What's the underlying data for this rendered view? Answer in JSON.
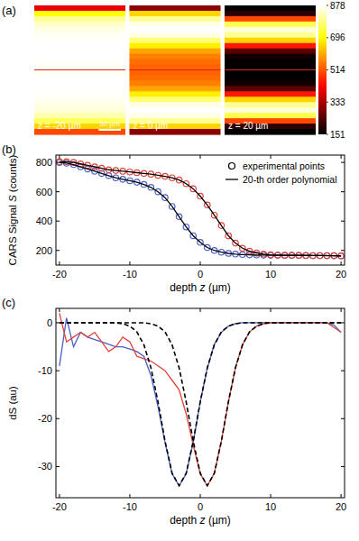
{
  "chart_data": [
    {
      "type": "heatmap",
      "title": "(a)",
      "xlim": [
        0,
        205
      ],
      "images": [
        {
          "label": "z = -20 µm",
          "rows": [
            400,
            700,
            800,
            840,
            860,
            870,
            875,
            878,
            878,
            878,
            875,
            870,
            870,
            875,
            878,
            878,
            875,
            870,
            860,
            850,
            820,
            760,
            650,
            500
          ]
        },
        {
          "label": "z = 0 µm",
          "rows": [
            300,
            650,
            800,
            860,
            878,
            860,
            780,
            680,
            600,
            560,
            540,
            530,
            530,
            540,
            560,
            600,
            680,
            780,
            860,
            878,
            860,
            800,
            650,
            300
          ]
        },
        {
          "label": "z = 20 µm",
          "rows": [
            151,
            200,
            500,
            750,
            850,
            800,
            650,
            450,
            250,
            170,
            155,
            151,
            151,
            155,
            170,
            250,
            450,
            650,
            800,
            850,
            750,
            500,
            200,
            151
          ]
        }
      ],
      "scale_bar": {
        "value": 50,
        "label": "50 µm"
      },
      "colorbar": {
        "range": [
          151,
          878
        ],
        "ticks": [
          151,
          333,
          514,
          696,
          878
        ]
      }
    },
    {
      "type": "scatter",
      "title": "(b)",
      "xlabel": "depth z (µm)",
      "ylabel": "CARS Signal S (counts)",
      "x": [
        -20,
        -19,
        -18,
        -17,
        -16,
        -15,
        -14,
        -13,
        -12,
        -11,
        -10,
        -9,
        -8,
        -7,
        -6,
        -5,
        -4,
        -3,
        -2,
        -1,
        0,
        1,
        2,
        3,
        4,
        5,
        6,
        7,
        8,
        9,
        10,
        11,
        12,
        13,
        14,
        15,
        16,
        17,
        18,
        19,
        20
      ],
      "xlim": [
        -20.5,
        20.5
      ],
      "xticks": [
        -20,
        -10,
        0,
        10,
        20
      ],
      "ylim": [
        100,
        850
      ],
      "yticks": [
        200,
        400,
        600,
        800
      ],
      "grid": false,
      "legend": "top-right",
      "series": [
        {
          "name": "experimental points",
          "type": "scatter",
          "marker": "circle",
          "color": "#4a5fc8",
          "values": [
            800,
            795,
            785,
            770,
            755,
            740,
            725,
            710,
            695,
            685,
            675,
            665,
            650,
            630,
            600,
            560,
            500,
            430,
            360,
            300,
            255,
            220,
            200,
            188,
            180,
            175,
            172,
            170,
            169,
            168,
            167,
            167,
            166,
            166,
            166,
            165,
            165,
            165,
            164,
            164,
            163
          ]
        },
        {
          "name": "experimental points",
          "type": "scatter",
          "marker": "circle",
          "color": "#e0433a",
          "values": [
            805,
            805,
            800,
            790,
            780,
            770,
            760,
            750,
            745,
            740,
            735,
            730,
            725,
            720,
            712,
            705,
            695,
            680,
            655,
            620,
            570,
            510,
            440,
            370,
            300,
            250,
            215,
            195,
            182,
            175,
            170,
            168,
            167,
            167,
            166,
            166,
            165,
            165,
            165,
            164,
            163
          ]
        },
        {
          "name": "20-th order polynomial",
          "type": "line",
          "line_style": "solid",
          "color": "#000000",
          "values": [
            800,
            795,
            785,
            770,
            755,
            740,
            725,
            710,
            695,
            685,
            675,
            665,
            650,
            630,
            600,
            560,
            500,
            430,
            360,
            300,
            255,
            220,
            200,
            188,
            180,
            175,
            172,
            170,
            169,
            168,
            167,
            167,
            166,
            166,
            166,
            165,
            165,
            165,
            164,
            164,
            163
          ]
        },
        {
          "name": "20-th order polynomial",
          "type": "line",
          "line_style": "solid",
          "color": "#000000",
          "values": [
            805,
            805,
            800,
            790,
            780,
            770,
            760,
            750,
            745,
            740,
            735,
            730,
            725,
            720,
            712,
            705,
            695,
            680,
            655,
            620,
            570,
            510,
            440,
            370,
            300,
            250,
            215,
            195,
            182,
            175,
            170,
            168,
            167,
            167,
            166,
            166,
            165,
            165,
            165,
            164,
            163
          ]
        }
      ]
    },
    {
      "type": "line",
      "title": "(c)",
      "xlabel": "depth z (µm)",
      "ylabel": "dS (au)",
      "x": [
        -20,
        -19,
        -18,
        -17,
        -16,
        -15,
        -14,
        -13,
        -12,
        -11,
        -10,
        -9,
        -8,
        -7,
        -6,
        -5,
        -4,
        -3,
        -2,
        -1,
        0,
        1,
        2,
        3,
        4,
        5,
        6,
        7,
        8,
        9,
        10,
        11,
        12,
        13,
        14,
        15,
        16,
        17,
        18,
        19,
        20
      ],
      "xlim": [
        -20.5,
        20.5
      ],
      "xticks": [
        -20,
        -10,
        0,
        10,
        20
      ],
      "ylim": [
        -36.5,
        3
      ],
      "yticks": [
        -30,
        -20,
        -10,
        0
      ],
      "grid": false,
      "series": [
        {
          "color": "#4a5fc8",
          "line_style": "solid",
          "values": [
            -9,
            1,
            -5,
            -2,
            -3,
            -3.5,
            -4,
            -4.5,
            -5,
            -5,
            -5.5,
            -6,
            -7,
            -11,
            -17.5,
            -25,
            -31.5,
            -34,
            -31.5,
            -25,
            -16.5,
            -9.5,
            -4.5,
            -2,
            -0.7,
            -0.2,
            0,
            0,
            0,
            0,
            0,
            0,
            0,
            0,
            0,
            0,
            0,
            0,
            0,
            -0.5,
            -2
          ]
        },
        {
          "color": "#e0433a",
          "line_style": "solid",
          "values": [
            2,
            -4,
            -3,
            -2,
            -3,
            -2,
            -4,
            -6,
            -5,
            -3,
            -4,
            -7,
            -7.5,
            -8,
            -9,
            -10,
            -12,
            -14,
            -19,
            -25.5,
            -31.5,
            -34,
            -31.4,
            -24.7,
            -16.5,
            -9.4,
            -4.6,
            -1.9,
            -0.7,
            -0.2,
            0,
            0,
            0,
            0,
            0,
            0,
            0,
            0,
            0,
            -1,
            -2
          ]
        },
        {
          "color": "#000000",
          "line_style": "dashed",
          "values": [
            0,
            0,
            0,
            0,
            0,
            0,
            0,
            0,
            0,
            -0.2,
            -0.7,
            -1.9,
            -4.6,
            -9.4,
            -16.5,
            -24.7,
            -31.4,
            -34,
            -31.4,
            -24.7,
            -16.5,
            -9.4,
            -4.6,
            -1.9,
            -0.7,
            -0.2,
            0,
            0,
            0,
            0,
            0,
            0,
            0,
            0,
            0,
            0,
            0,
            0,
            0,
            0,
            0
          ]
        },
        {
          "color": "#000000",
          "line_style": "dashed",
          "values": [
            0,
            0,
            0,
            0,
            0,
            0,
            0,
            0,
            0,
            0,
            0,
            0,
            0,
            -0.2,
            -0.7,
            -1.9,
            -4.6,
            -9.4,
            -16.5,
            -24.7,
            -31.4,
            -34,
            -31.4,
            -24.7,
            -16.5,
            -9.4,
            -4.6,
            -1.9,
            -0.7,
            -0.2,
            0,
            0,
            0,
            0,
            0,
            0,
            0,
            0,
            0,
            0,
            0
          ]
        }
      ]
    }
  ]
}
